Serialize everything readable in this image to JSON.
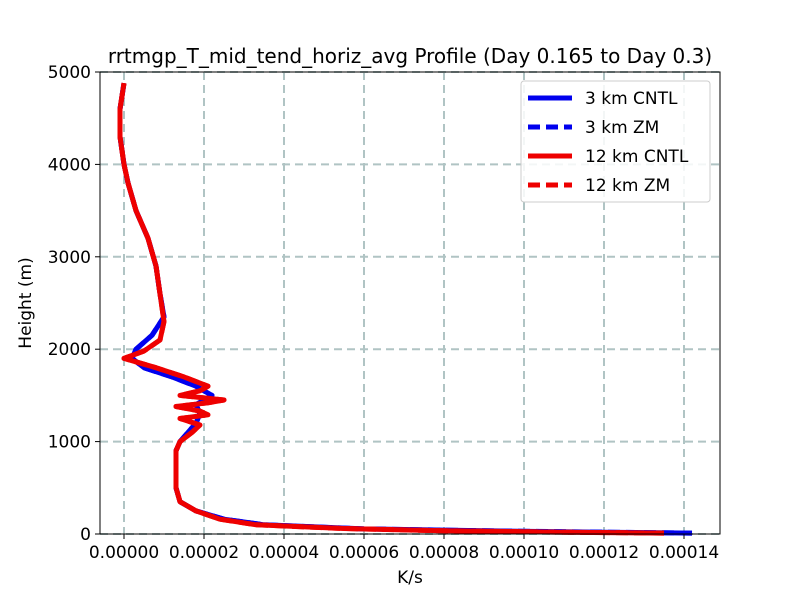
{
  "chart_data": {
    "type": "line",
    "title": "rrtmgp_T_mid_tend_horiz_avg Profile (Day 0.165 to Day 0.3)",
    "xlabel": "K/s",
    "ylabel": "Height (m)",
    "xlim": [
      -6e-06,
      0.000149
    ],
    "ylim": [
      0,
      5000
    ],
    "xticks": [
      0.0,
      2e-05,
      4e-05,
      6e-05,
      8e-05,
      0.0001,
      0.00012,
      0.00014
    ],
    "xtick_labels": [
      "0.00000",
      "0.00002",
      "0.00004",
      "0.00006",
      "0.00008",
      "0.00010",
      "0.00012",
      "0.00014"
    ],
    "yticks": [
      0,
      1000,
      2000,
      3000,
      4000,
      5000
    ],
    "ytick_labels": [
      "0",
      "1000",
      "2000",
      "3000",
      "4000",
      "5000"
    ],
    "grid": true,
    "legend_position": "top-right",
    "series": [
      {
        "name": "3 km CNTL",
        "color": "#0000ee",
        "style": "solid",
        "points": [
          [
            0.000142,
            10
          ],
          [
            0.00012,
            20
          ],
          [
            9e-05,
            35
          ],
          [
            6e-05,
            55
          ],
          [
            3.5e-05,
            100
          ],
          [
            2.5e-05,
            160
          ],
          [
            1.8e-05,
            250
          ],
          [
            1.4e-05,
            350
          ],
          [
            1.3e-05,
            500
          ],
          [
            1.3e-05,
            700
          ],
          [
            1.3e-05,
            900
          ],
          [
            1.4e-05,
            1000
          ],
          [
            1.6e-05,
            1100
          ],
          [
            1.8e-05,
            1200
          ],
          [
            1.9e-05,
            1300
          ],
          [
            1.8e-05,
            1400
          ],
          [
            2e-05,
            1450
          ],
          [
            2.2e-05,
            1500
          ],
          [
            2e-05,
            1550
          ],
          [
            1.8e-05,
            1600
          ],
          [
            1.2e-05,
            1700
          ],
          [
            5e-06,
            1800
          ],
          [
            2e-06,
            1900
          ],
          [
            3e-06,
            2000
          ],
          [
            7e-06,
            2150
          ],
          [
            1e-05,
            2350
          ],
          [
            9e-06,
            2600
          ],
          [
            8e-06,
            2900
          ],
          [
            6e-06,
            3200
          ],
          [
            3e-06,
            3500
          ],
          [
            1e-06,
            3800
          ],
          [
            0.0,
            4000
          ],
          [
            -1e-06,
            4300
          ],
          [
            -1e-06,
            4600
          ],
          [
            0.0,
            4880
          ]
        ]
      },
      {
        "name": "3 km ZM",
        "color": "#0000ee",
        "style": "dashed",
        "points": [
          [
            0.000142,
            10
          ],
          [
            0.00012,
            20
          ],
          [
            9e-05,
            35
          ],
          [
            6e-05,
            55
          ],
          [
            3.5e-05,
            100
          ],
          [
            2.5e-05,
            160
          ],
          [
            1.8e-05,
            250
          ],
          [
            1.4e-05,
            350
          ],
          [
            1.3e-05,
            500
          ],
          [
            1.3e-05,
            700
          ],
          [
            1.3e-05,
            900
          ],
          [
            1.4e-05,
            1000
          ],
          [
            1.6e-05,
            1100
          ],
          [
            1.8e-05,
            1200
          ],
          [
            1.9e-05,
            1300
          ],
          [
            1.8e-05,
            1400
          ],
          [
            2e-05,
            1450
          ],
          [
            2.2e-05,
            1500
          ],
          [
            2e-05,
            1550
          ],
          [
            1.8e-05,
            1600
          ],
          [
            1.2e-05,
            1700
          ],
          [
            5e-06,
            1800
          ],
          [
            2e-06,
            1900
          ],
          [
            3e-06,
            2000
          ],
          [
            7e-06,
            2150
          ],
          [
            1e-05,
            2350
          ],
          [
            9e-06,
            2600
          ],
          [
            8e-06,
            2900
          ],
          [
            6e-06,
            3200
          ],
          [
            3e-06,
            3500
          ],
          [
            1e-06,
            3800
          ],
          [
            0.0,
            4000
          ],
          [
            -1e-06,
            4300
          ],
          [
            -1e-06,
            4600
          ],
          [
            0.0,
            4880
          ]
        ]
      },
      {
        "name": "12 km CNTL",
        "color": "#ee0000",
        "style": "solid",
        "points": [
          [
            0.000135,
            10
          ],
          [
            0.00011,
            20
          ],
          [
            8e-05,
            35
          ],
          [
            5.5e-05,
            60
          ],
          [
            3.3e-05,
            100
          ],
          [
            2.4e-05,
            160
          ],
          [
            1.8e-05,
            250
          ],
          [
            1.4e-05,
            350
          ],
          [
            1.3e-05,
            500
          ],
          [
            1.3e-05,
            700
          ],
          [
            1.3e-05,
            900
          ],
          [
            1.4e-05,
            1000
          ],
          [
            1.7e-05,
            1100
          ],
          [
            1.9e-05,
            1180
          ],
          [
            1.4e-05,
            1250
          ],
          [
            2.1e-05,
            1290
          ],
          [
            1.9e-05,
            1330
          ],
          [
            1.3e-05,
            1380
          ],
          [
            2.1e-05,
            1420
          ],
          [
            2.5e-05,
            1450
          ],
          [
            1.4e-05,
            1500
          ],
          [
            1.9e-05,
            1550
          ],
          [
            2.1e-05,
            1600
          ],
          [
            1.5e-05,
            1700
          ],
          [
            8e-06,
            1800
          ],
          [
            0.0,
            1900
          ],
          [
            5e-06,
            1980
          ],
          [
            9e-06,
            2100
          ],
          [
            1e-05,
            2300
          ],
          [
            9e-06,
            2600
          ],
          [
            8e-06,
            2900
          ],
          [
            6e-06,
            3200
          ],
          [
            3e-06,
            3500
          ],
          [
            1e-06,
            3800
          ],
          [
            0.0,
            4000
          ],
          [
            -1e-06,
            4300
          ],
          [
            -1e-06,
            4600
          ],
          [
            0.0,
            4880
          ]
        ]
      },
      {
        "name": "12 km ZM",
        "color": "#ee0000",
        "style": "dashed",
        "points": [
          [
            0.000135,
            10
          ],
          [
            0.00011,
            20
          ],
          [
            8e-05,
            35
          ],
          [
            5.5e-05,
            60
          ],
          [
            3.3e-05,
            100
          ],
          [
            2.4e-05,
            160
          ],
          [
            1.8e-05,
            250
          ],
          [
            1.4e-05,
            350
          ],
          [
            1.3e-05,
            500
          ],
          [
            1.3e-05,
            700
          ],
          [
            1.3e-05,
            900
          ],
          [
            1.4e-05,
            1000
          ],
          [
            1.7e-05,
            1100
          ],
          [
            1.9e-05,
            1180
          ],
          [
            1.4e-05,
            1250
          ],
          [
            2.1e-05,
            1290
          ],
          [
            1.9e-05,
            1330
          ],
          [
            1.3e-05,
            1380
          ],
          [
            2.1e-05,
            1420
          ],
          [
            2.5e-05,
            1450
          ],
          [
            1.4e-05,
            1500
          ],
          [
            1.9e-05,
            1550
          ],
          [
            2.1e-05,
            1600
          ],
          [
            1.5e-05,
            1700
          ],
          [
            8e-06,
            1800
          ],
          [
            0.0,
            1900
          ],
          [
            5e-06,
            1980
          ],
          [
            9e-06,
            2100
          ],
          [
            1e-05,
            2300
          ],
          [
            9e-06,
            2600
          ],
          [
            8e-06,
            2900
          ],
          [
            6e-06,
            3200
          ],
          [
            3e-06,
            3500
          ],
          [
            1e-06,
            3800
          ],
          [
            0.0,
            4000
          ],
          [
            -1e-06,
            4300
          ],
          [
            -1e-06,
            4600
          ],
          [
            0.0,
            4880
          ]
        ]
      }
    ]
  }
}
